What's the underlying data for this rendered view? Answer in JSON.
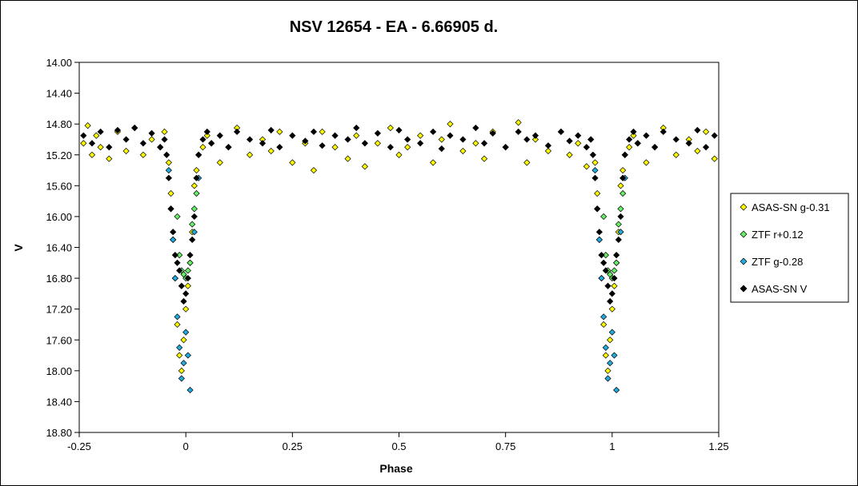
{
  "chart_data": {
    "type": "scatter",
    "title": "NSV 12654 - EA - 6.66905 d.",
    "xlabel": "Phase",
    "ylabel": "V",
    "xlim": [
      -0.25,
      1.25
    ],
    "ylim": [
      14.0,
      18.8
    ],
    "y_inverted": true,
    "grid": false,
    "legend_position": "right",
    "x_ticks": [
      -0.25,
      0,
      0.25,
      0.5,
      0.75,
      1,
      1.25
    ],
    "x_tick_labels": [
      "-0.25",
      "0",
      "0.25",
      "0.5",
      "0.75",
      "1",
      "1.25"
    ],
    "y_ticks": [
      14.0,
      14.4,
      14.8,
      15.2,
      15.6,
      16.0,
      16.4,
      16.8,
      17.2,
      17.6,
      18.0,
      18.4,
      18.8
    ],
    "y_tick_labels": [
      "14.00",
      "14.40",
      "14.80",
      "15.20",
      "15.60",
      "16.00",
      "16.40",
      "16.80",
      "17.20",
      "17.60",
      "18.00",
      "18.40",
      "18.80"
    ],
    "series": [
      {
        "name": "ASAS-SN g-0.31",
        "color": "#ffff00",
        "x": [
          -0.24,
          -0.23,
          -0.22,
          -0.21,
          -0.2,
          -0.18,
          -0.16,
          -0.14,
          -0.12,
          -0.1,
          -0.08,
          -0.06,
          -0.05,
          -0.04,
          -0.035,
          -0.03,
          -0.025,
          -0.02,
          -0.015,
          -0.01,
          -0.005,
          0,
          0.005,
          0.01,
          0.015,
          0.02,
          0.025,
          0.03,
          0.04,
          0.05,
          0.06,
          0.08,
          0.1,
          0.12,
          0.15,
          0.18,
          0.2,
          0.22,
          0.25,
          0.28,
          0.3,
          0.32,
          0.35,
          0.38,
          0.4,
          0.42,
          0.45,
          0.48,
          0.5,
          0.52,
          0.55,
          0.58,
          0.6,
          0.62,
          0.65,
          0.68,
          0.7,
          0.72,
          0.75,
          0.78,
          0.8,
          0.82,
          0.85,
          0.88,
          0.9,
          0.92,
          0.94,
          0.95,
          0.96,
          0.965,
          0.97,
          0.975,
          0.98,
          0.985,
          0.99,
          0.995,
          1,
          1.005,
          1.01,
          1.015,
          1.02,
          1.025,
          1.03,
          1.04,
          1.05,
          1.06,
          1.08,
          1.1,
          1.12,
          1.15,
          1.18,
          1.2,
          1.22,
          1.24
        ],
        "values": [
          15.05,
          14.82,
          15.2,
          14.95,
          15.1,
          15.25,
          14.9,
          15.15,
          14.85,
          15.2,
          15.0,
          15.1,
          14.9,
          15.3,
          15.7,
          16.3,
          16.8,
          17.4,
          17.8,
          18.0,
          17.6,
          17.2,
          16.9,
          16.6,
          16.2,
          15.6,
          15.4,
          15.2,
          15.1,
          14.95,
          15.05,
          15.3,
          15.1,
          14.85,
          15.2,
          15.0,
          15.15,
          14.9,
          15.3,
          15.05,
          15.4,
          14.9,
          15.1,
          15.25,
          14.95,
          15.35,
          15.05,
          14.85,
          15.2,
          15.1,
          14.95,
          15.3,
          15.0,
          14.8,
          15.15,
          15.05,
          15.25,
          14.9,
          15.1,
          14.78,
          15.3,
          15.0,
          15.15,
          14.9,
          15.2,
          15.05,
          15.35,
          15.0,
          15.3,
          15.7,
          16.3,
          16.8,
          17.4,
          17.8,
          18.0,
          17.6,
          17.2,
          16.9,
          16.6,
          16.2,
          15.6,
          15.4,
          15.2,
          15.1,
          14.95,
          15.05,
          15.3,
          15.1,
          14.85,
          15.2,
          15.0,
          15.15,
          14.9,
          15.25
        ]
      },
      {
        "name": "ZTF r+0.12",
        "color": "#66ee66",
        "x": [
          -0.02,
          -0.015,
          -0.01,
          -0.005,
          0,
          0.005,
          0.01,
          0.015,
          0.02,
          0.025,
          0.98,
          0.985,
          0.99,
          0.995,
          1,
          1.005,
          1.01,
          1.015,
          1.02,
          1.025
        ],
        "values": [
          16.0,
          16.5,
          16.7,
          16.75,
          16.8,
          16.7,
          16.6,
          16.1,
          15.9,
          15.7,
          16.0,
          16.5,
          16.7,
          16.75,
          16.8,
          16.7,
          16.6,
          16.1,
          15.9,
          15.7
        ]
      },
      {
        "name": "ZTF g-0.28",
        "color": "#22aadd",
        "x": [
          -0.04,
          -0.035,
          -0.03,
          -0.025,
          -0.02,
          -0.015,
          -0.01,
          -0.005,
          0,
          0.005,
          0.01,
          0.02,
          0.03,
          0.96,
          0.965,
          0.97,
          0.975,
          0.98,
          0.985,
          0.99,
          0.995,
          1,
          1.005,
          1.01,
          1.02,
          1.03
        ],
        "values": [
          15.4,
          15.9,
          16.3,
          16.8,
          17.3,
          17.7,
          18.1,
          17.9,
          17.5,
          17.8,
          18.25,
          16.2,
          15.5,
          15.4,
          15.9,
          16.3,
          16.8,
          17.3,
          17.7,
          18.1,
          17.9,
          17.5,
          17.8,
          18.25,
          16.2,
          15.5
        ]
      },
      {
        "name": "ASAS-SN V",
        "color": "#000000",
        "x": [
          -0.24,
          -0.22,
          -0.2,
          -0.18,
          -0.16,
          -0.14,
          -0.12,
          -0.1,
          -0.08,
          -0.06,
          -0.05,
          -0.045,
          -0.04,
          -0.035,
          -0.03,
          -0.025,
          -0.02,
          -0.015,
          -0.01,
          -0.005,
          0,
          0.005,
          0.01,
          0.015,
          0.02,
          0.025,
          0.03,
          0.04,
          0.05,
          0.06,
          0.08,
          0.1,
          0.12,
          0.15,
          0.18,
          0.2,
          0.22,
          0.25,
          0.28,
          0.3,
          0.32,
          0.35,
          0.38,
          0.4,
          0.42,
          0.45,
          0.48,
          0.5,
          0.52,
          0.55,
          0.58,
          0.6,
          0.62,
          0.65,
          0.68,
          0.7,
          0.72,
          0.75,
          0.78,
          0.8,
          0.82,
          0.85,
          0.88,
          0.9,
          0.92,
          0.94,
          0.95,
          0.955,
          0.96,
          0.965,
          0.97,
          0.975,
          0.98,
          0.985,
          0.99,
          0.995,
          1,
          1.005,
          1.01,
          1.015,
          1.02,
          1.025,
          1.03,
          1.04,
          1.05,
          1.06,
          1.08,
          1.1,
          1.12,
          1.15,
          1.18,
          1.2,
          1.22,
          1.24
        ],
        "values": [
          14.95,
          15.05,
          14.9,
          15.1,
          14.88,
          15.0,
          14.85,
          15.05,
          14.92,
          15.1,
          15.0,
          15.2,
          15.5,
          15.9,
          16.2,
          16.5,
          16.6,
          16.7,
          16.9,
          17.1,
          17.0,
          16.8,
          16.5,
          16.3,
          16.0,
          15.5,
          15.2,
          15.0,
          14.9,
          15.05,
          14.95,
          15.1,
          14.9,
          15.0,
          15.05,
          14.88,
          15.1,
          14.95,
          15.02,
          14.9,
          15.08,
          14.95,
          15.0,
          14.85,
          15.05,
          14.92,
          15.1,
          14.88,
          15.0,
          15.05,
          14.9,
          15.12,
          14.95,
          15.0,
          14.85,
          15.05,
          14.92,
          15.1,
          14.9,
          15.0,
          14.95,
          15.08,
          14.9,
          15.02,
          14.95,
          15.1,
          15.0,
          15.2,
          15.5,
          15.9,
          16.2,
          16.5,
          16.6,
          16.7,
          16.9,
          17.1,
          17.0,
          16.8,
          16.5,
          16.3,
          16.0,
          15.5,
          15.2,
          15.0,
          14.9,
          15.05,
          14.95,
          15.1,
          14.9,
          15.0,
          15.05,
          14.88,
          15.1,
          14.95
        ]
      }
    ]
  }
}
